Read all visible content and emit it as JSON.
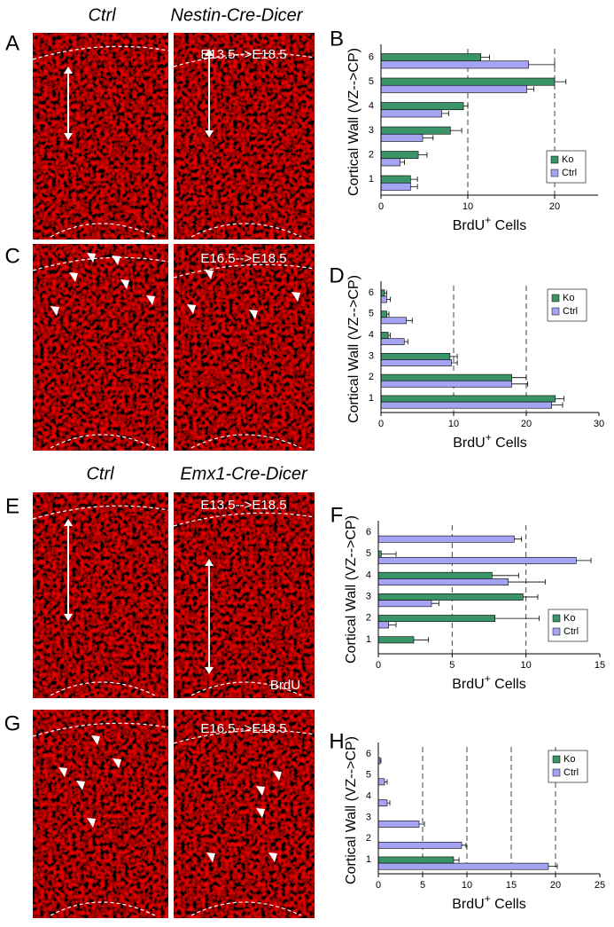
{
  "figure": {
    "panel_labels": [
      "A",
      "B",
      "C",
      "D",
      "E",
      "F",
      "G",
      "H"
    ],
    "image_labels": [
      "Ctrl",
      "Nestin-Cre-Dicer",
      "E13.5-->E18.5",
      "E16.5-->E18.5",
      "Ctrl",
      "Emx1-Cre-Dicer",
      "E13.5-->E18.5",
      "BrdU",
      "E16.5-->E18.5"
    ]
  },
  "chart_data": [
    {
      "type": "bar",
      "categories": [
        "1",
        "2",
        "3",
        "4",
        "5",
        "6"
      ],
      "series": [
        {
          "name": "Ko",
          "color": "#3a9468",
          "values": [
            3.4,
            4.3,
            8,
            9.5,
            20,
            11.5
          ],
          "errors": [
            0.8,
            1,
            1.3,
            0.5,
            1.3,
            1
          ]
        },
        {
          "name": "Ctrl",
          "color": "#a4a4f2",
          "values": [
            3.4,
            2.2,
            4.8,
            7,
            16.8,
            17
          ],
          "errors": [
            0.8,
            0.5,
            1.2,
            0.8,
            0.8,
            3
          ]
        }
      ],
      "xlim": [
        0,
        25
      ],
      "xticks": [
        0,
        10,
        20
      ],
      "grid": true,
      "legend": "lower right",
      "xlabel": [
        "BrdU",
        "+",
        " Cells"
      ],
      "ylabel": "Cortical Wall (VZ-->CP)"
    },
    {
      "type": "bar",
      "categories": [
        "1",
        "2",
        "3",
        "4",
        "5",
        "6"
      ],
      "series": [
        {
          "name": "Ko",
          "color": "#3a9468",
          "values": [
            24,
            18,
            9.5,
            1,
            0.8,
            0.5
          ],
          "errors": [
            1.2,
            2,
            1,
            0.3,
            0.3,
            0.3
          ]
        },
        {
          "name": "Ctrl",
          "color": "#a4a4f2",
          "values": [
            23.5,
            18,
            9.7,
            3.2,
            3.5,
            0.8
          ],
          "errors": [
            1.5,
            2.2,
            0.8,
            0.5,
            0.8,
            0.5
          ]
        }
      ],
      "xlim": [
        0,
        30
      ],
      "xticks": [
        0,
        10,
        20,
        30
      ],
      "grid": true,
      "legend": "upper right",
      "xlabel": [
        "BrdU",
        "+",
        " Cells"
      ],
      "ylabel": "Cortical Wall (VZ-->CP)"
    },
    {
      "type": "bar",
      "categories": [
        "1",
        "2",
        "3",
        "4",
        "5",
        "6"
      ],
      "series": [
        {
          "name": "Ko",
          "color": "#3a9468",
          "values": [
            2.4,
            7.9,
            9.8,
            7.7,
            0.2,
            0
          ],
          "errors": [
            1,
            3,
            1,
            1.8,
            1,
            0
          ]
        },
        {
          "name": "Ctrl",
          "color": "#a4a4f2",
          "values": [
            0,
            0.7,
            3.6,
            8.8,
            13.4,
            9.2
          ],
          "errors": [
            0,
            0.5,
            0.5,
            2.5,
            1,
            0.5
          ]
        }
      ],
      "xlim": [
        0,
        15
      ],
      "xticks": [
        0,
        5,
        10,
        15
      ],
      "grid": true,
      "legend": "lower right",
      "xlabel": [
        "BrdU",
        "+",
        " Cells"
      ],
      "ylabel": "Cortical Wall (VZ-->CP)"
    },
    {
      "type": "bar",
      "categories": [
        "1",
        "2",
        "3",
        "4",
        "5",
        "6"
      ],
      "series": [
        {
          "name": "Ko",
          "color": "#3a9468",
          "values": [
            8.5,
            0,
            0,
            0,
            0,
            0
          ],
          "errors": [
            0.6,
            0,
            0,
            0,
            0,
            0
          ]
        },
        {
          "name": "Ctrl",
          "color": "#a4a4f2",
          "values": [
            19.2,
            9.4,
            4.6,
            1,
            0.7,
            0.2
          ],
          "errors": [
            1,
            0.5,
            0.6,
            0.3,
            0.3,
            0.1
          ]
        }
      ],
      "xlim": [
        0,
        25
      ],
      "xticks": [
        0,
        5,
        10,
        15,
        20,
        25
      ],
      "grid": true,
      "legend": "upper right",
      "xlabel": [
        "BrdU",
        "+",
        " Cells"
      ],
      "ylabel": "Cortical Wall (VZ-->CP)"
    }
  ]
}
